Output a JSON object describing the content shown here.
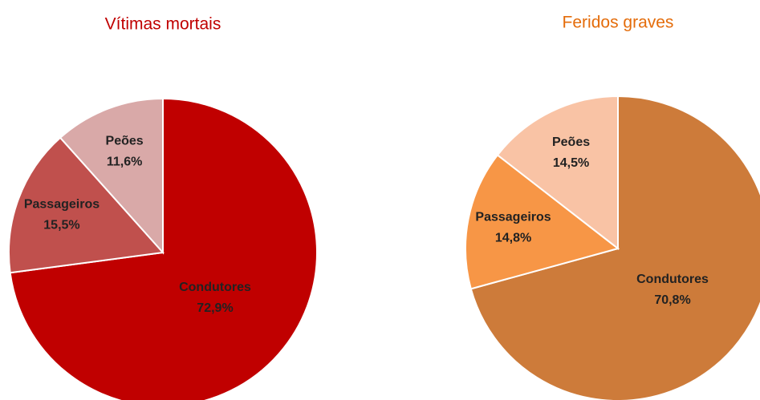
{
  "chart_data": [
    {
      "type": "pie",
      "title": "Vítimas mortais",
      "title_color": "#c00000",
      "categories": [
        "Condutores",
        "Passageiros",
        "Peões"
      ],
      "values": [
        72.9,
        15.5,
        11.6
      ],
      "value_labels": [
        "72,9%",
        "15,5%",
        "11,6%"
      ],
      "colors": [
        "#c00000",
        "#c0504d",
        "#d9a9a8"
      ]
    },
    {
      "type": "pie",
      "title": "Feridos graves",
      "title_color": "#e46c0a",
      "categories": [
        "Condutores",
        "Passageiros",
        "Peões"
      ],
      "values": [
        70.8,
        14.8,
        14.5
      ],
      "value_labels": [
        "70,8%",
        "14,8%",
        "14,5%"
      ],
      "colors": [
        "#cd7b3a",
        "#f79646",
        "#f9c3a5"
      ]
    }
  ]
}
